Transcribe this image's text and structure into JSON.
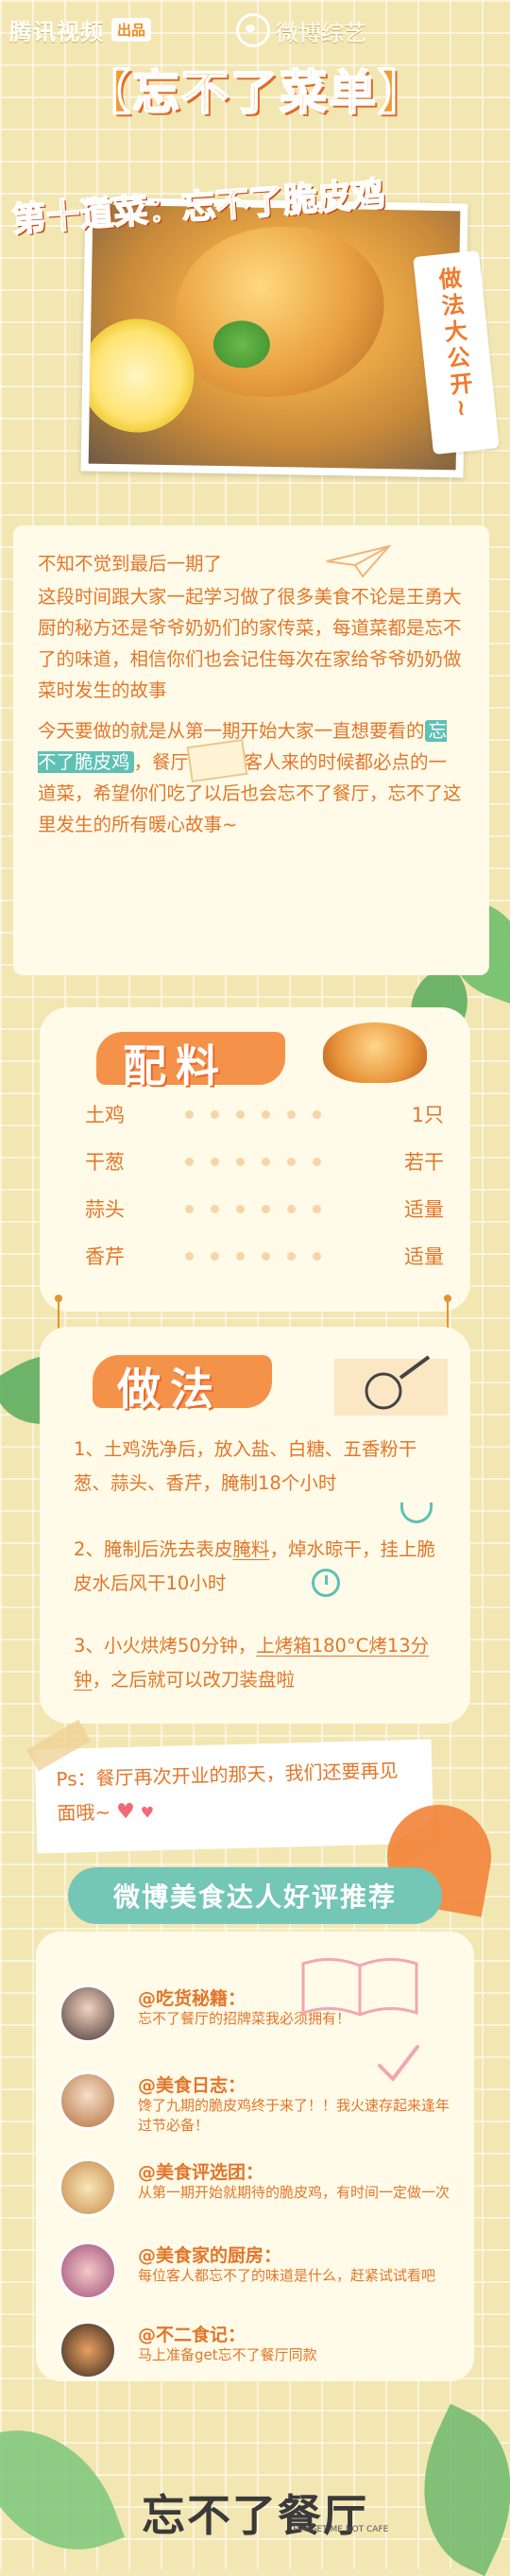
{
  "header": {
    "brand_tencent": "腾讯视频",
    "brand_badge": "出品",
    "brand_weibo": "微博综艺",
    "title": "【忘不了菜单】",
    "subtitle": "第十道菜：忘不了脆皮鸡",
    "tag": "做法大公开~"
  },
  "intro": {
    "line1": "不知不觉到最后一期了",
    "p1": "这段时间跟大家一起学习做了很多美食不论是王勇大厨的秘方还是爷爷奶奶们的家传菜，每道菜都是忘不了的味道，相信你们也会记住每次在家给爷爷奶奶做菜时发生的故事",
    "p2_a": "今天要做的就是从第一期开始大家一直想要看的",
    "p2_highlight": "忘不了脆皮鸡",
    "p2_b": "，餐厅里每位客人来的时候都必点的一道菜，希望你们吃了以后也会忘不了餐厅，忘不了这里发生的所有暖心故事~"
  },
  "ingredients": {
    "title": "配料",
    "items": [
      {
        "name": "土鸡",
        "qty": "1只"
      },
      {
        "name": "干葱",
        "qty": "若干"
      },
      {
        "name": "蒜头",
        "qty": "适量"
      },
      {
        "name": "香芹",
        "qty": "适量"
      }
    ]
  },
  "steps": {
    "title": "做法",
    "s1": "1、土鸡洗净后，放入盐、白糖、五香粉干葱、蒜头、香芹，腌制18个小时",
    "s2_a": "2、腌制后洗去表皮",
    "s2_u": "腌料",
    "s2_b": "，焯水晾干，挂上脆皮水后风干10小时",
    "s3_a": "3、小火烘烤50分钟，",
    "s3_u": "上烤箱180°C烤13分钟",
    "s3_b": "，之后就可以改刀装盘啦"
  },
  "ps": {
    "text": "Ps：餐厅再次开业的那天，我们还要再见面哦~"
  },
  "recommend": {
    "title": "微博美食达人好评推荐",
    "reviews": [
      {
        "user": "@吃货秘籍：",
        "text": "忘不了餐厅的招牌菜我必须拥有！"
      },
      {
        "user": "@美食日志：",
        "text": "馋了九期的脆皮鸡终于来了！！我火速存起来逢年过节必备！"
      },
      {
        "user": "@美食评选团：",
        "text": "从第一期开始就期待的脆皮鸡，有时间一定做一次"
      },
      {
        "user": "@美食家的厨房：",
        "text": "每位客人都忘不了的味道是什么，赶紧试试看吧"
      },
      {
        "user": "@不二食记：",
        "text": "马上准备get忘不了餐厅同款"
      }
    ]
  },
  "footer": {
    "logo": "忘不了餐厅",
    "sub": "FORGET ME NOT CAFE"
  },
  "colors": {
    "accent": "#e3762a",
    "teal": "#5fc0b4",
    "bg": "#f3e9b8"
  }
}
